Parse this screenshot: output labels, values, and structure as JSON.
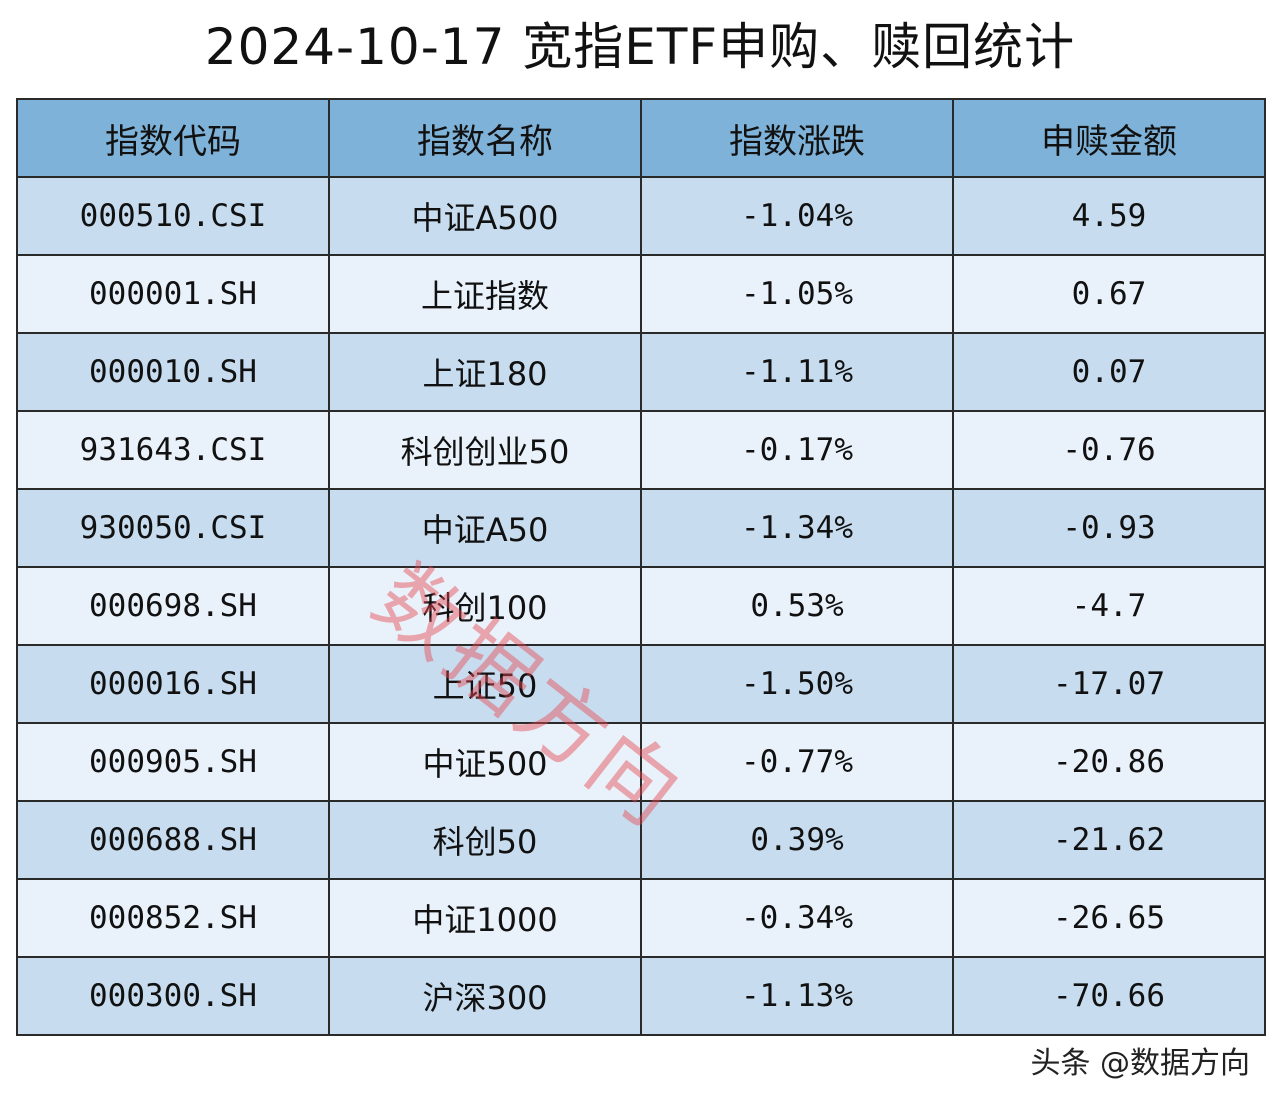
{
  "chart_data": {
    "type": "table",
    "title": "2024-10-17 宽指ETF申购、赎回统计",
    "columns": [
      "指数代码",
      "指数名称",
      "指数涨跌",
      "申赎金额"
    ],
    "rows": [
      {
        "code": "000510.CSI",
        "name": "中证A500",
        "change": "-1.04%",
        "flow": "4.59"
      },
      {
        "code": "000001.SH",
        "name": "上证指数",
        "change": "-1.05%",
        "flow": "0.67"
      },
      {
        "code": "000010.SH",
        "name": "上证180",
        "change": "-1.11%",
        "flow": "0.07"
      },
      {
        "code": "931643.CSI",
        "name": "科创创业50",
        "change": "-0.17%",
        "flow": "-0.76"
      },
      {
        "code": "930050.CSI",
        "name": "中证A50",
        "change": "-1.34%",
        "flow": "-0.93"
      },
      {
        "code": "000698.SH",
        "name": "科创100",
        "change": "0.53%",
        "flow": "-4.7"
      },
      {
        "code": "000016.SH",
        "name": "上证50",
        "change": "-1.50%",
        "flow": "-17.07"
      },
      {
        "code": "000905.SH",
        "name": "中证500",
        "change": "-0.77%",
        "flow": "-20.86"
      },
      {
        "code": "000688.SH",
        "name": "科创50",
        "change": "0.39%",
        "flow": "-21.62"
      },
      {
        "code": "000852.SH",
        "name": "中证1000",
        "change": "-0.34%",
        "flow": "-26.65"
      },
      {
        "code": "000300.SH",
        "name": "沪深300",
        "change": "-1.13%",
        "flow": "-70.66"
      }
    ]
  },
  "watermark": "数据方向",
  "credit": "头条 @数据方向",
  "colors": {
    "header_bg": "#7fb2d8",
    "row_odd_bg": "#c7dcee",
    "row_even_bg": "#e9f1fa",
    "watermark": "#e64650"
  }
}
